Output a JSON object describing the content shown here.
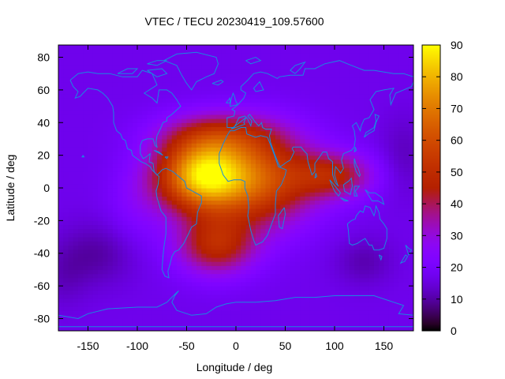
{
  "chart_data": {
    "type": "heatmap",
    "title": "VTEC / TECU 20230419_109.57600",
    "xlabel": "Longitude / deg",
    "ylabel": "Latitude / deg",
    "xlim": [
      -180,
      180
    ],
    "ylim": [
      -87.5,
      87.5
    ],
    "x_ticks": [
      -150,
      -100,
      -50,
      0,
      50,
      100,
      150
    ],
    "y_ticks": [
      -80,
      -60,
      -40,
      -20,
      0,
      20,
      40,
      60,
      80
    ],
    "colorbar": {
      "min": 0,
      "max": 90,
      "ticks": [
        0,
        10,
        20,
        30,
        40,
        50,
        60,
        70,
        80,
        90
      ],
      "colormap": "gnuplot-pm3d (black-purple-red-orange-yellow)"
    },
    "grid": {
      "lon_step": 5,
      "lat_step": 2.5
    },
    "features": {
      "background_level": 17,
      "crest_peak_lon": -25,
      "crest_peak_lat": 8,
      "crest_peak_value": 88,
      "extension_east_to_lon": 130,
      "southern_lobe_center": [
        -20,
        -35
      ],
      "northern_lobe_center": [
        -15,
        35
      ]
    },
    "coastline_color": "#1a88e0"
  }
}
